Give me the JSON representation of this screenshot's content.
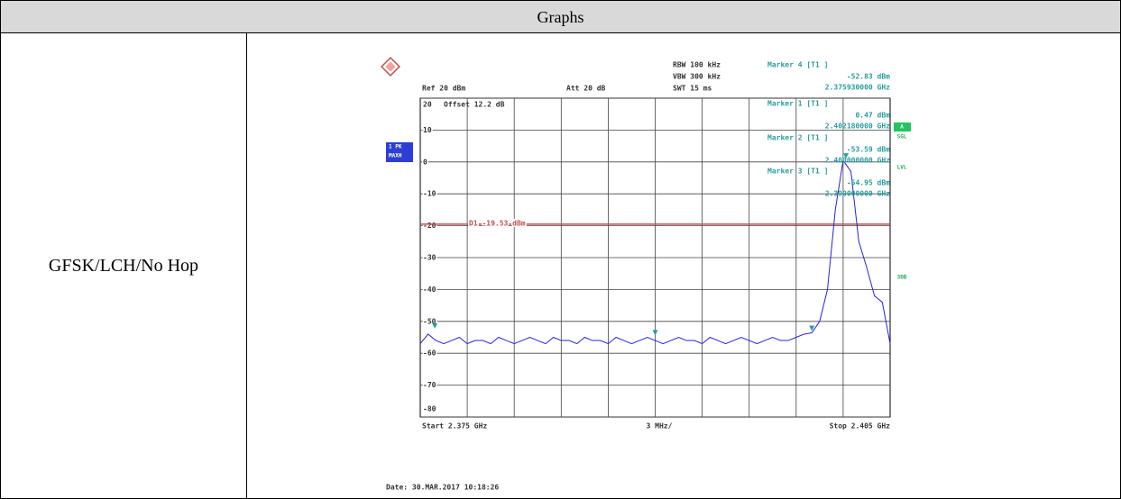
{
  "table": {
    "header": "Graphs",
    "rows": [
      {
        "label": "GFSK/LCH/No Hop"
      }
    ]
  },
  "chart_data": {
    "type": "line",
    "settings": [
      "RBW 100 kHz",
      "VBW 300 kHz",
      "SWT 15 ms"
    ],
    "ref_level": "Ref 20 dBm",
    "attenuation": "Att 20 dB",
    "offset": "Offset 12.2 dB",
    "trace_label": [
      "1 PK",
      "MAXH"
    ],
    "side_labels": [
      "A",
      "SGL",
      "LVL",
      "3DB"
    ],
    "start": "Start 2.375 GHz",
    "span_per_div": "3 MHz/",
    "stop": "Stop 2.405 GHz",
    "date": "Date: 30.MAR.2017 10:18:26",
    "xlim": [
      2.375,
      2.405
    ],
    "ylim": [
      -80,
      20
    ],
    "yticks": [
      20,
      10,
      0,
      -10,
      -20,
      -30,
      -40,
      -50,
      -60,
      -70,
      -80
    ],
    "grid": true,
    "x": [
      2.375,
      2.3755,
      2.376,
      2.3765,
      2.377,
      2.3775,
      2.378,
      2.3785,
      2.379,
      2.3795,
      2.38,
      2.3805,
      2.381,
      2.3815,
      2.382,
      2.3825,
      2.383,
      2.3835,
      2.384,
      2.3845,
      2.385,
      2.3855,
      2.386,
      2.3865,
      2.387,
      2.3875,
      2.388,
      2.3885,
      2.389,
      2.3895,
      2.39,
      2.3905,
      2.391,
      2.3915,
      2.392,
      2.3925,
      2.393,
      2.3935,
      2.394,
      2.3945,
      2.395,
      2.3955,
      2.396,
      2.3965,
      2.397,
      2.3975,
      2.398,
      2.3985,
      2.399,
      2.3995,
      2.4,
      2.4005,
      2.401,
      2.4015,
      2.402,
      2.4025,
      2.403,
      2.4035,
      2.404,
      2.4045,
      2.405
    ],
    "series": [
      {
        "color": "#2323e6",
        "values": [
          -57,
          -54,
          -56,
          -57,
          -56,
          -55,
          -57,
          -56,
          -56,
          -57,
          -55,
          -56,
          -57,
          -56,
          -55,
          -56,
          -57,
          -55,
          -56,
          -56,
          -57,
          -55,
          -56,
          -56,
          -57,
          -55,
          -56,
          -57,
          -56,
          -55,
          -56,
          -57,
          -56,
          -55,
          -56,
          -56,
          -57,
          -55,
          -56,
          -57,
          -56,
          -55,
          -56,
          -57,
          -56,
          -55,
          -56,
          -56,
          -55,
          -54,
          -53.59,
          -50,
          -40,
          -15,
          0.5,
          -3,
          -25,
          -33,
          -42,
          -44,
          -57
        ]
      }
    ],
    "display_line": {
      "label": "D1 -19.53 dBm",
      "value": -19.53,
      "color": "#c0504d"
    },
    "markers": [
      {
        "name": "Marker 4 [T1 ]",
        "x": 2.37593,
        "value": -52.83,
        "value_label": "-52.83 dBm",
        "x_label": "2.375930000 GHz"
      },
      {
        "name": "Marker 1 [T1 ]",
        "x": 2.40218,
        "value": 0.47,
        "value_label": "0.47 dBm",
        "x_label": "2.402180000 GHz"
      },
      {
        "name": "Marker 2 [T1 ]",
        "x": 2.4,
        "value": -53.59,
        "value_label": "-53.59 dBm",
        "x_label": "2.400000000 GHz"
      },
      {
        "name": "Marker 3 [T1 ]",
        "x": 2.39,
        "value": -54.95,
        "value_label": "-54.95 dBm",
        "x_label": "2.390000000 GHz"
      }
    ]
  }
}
